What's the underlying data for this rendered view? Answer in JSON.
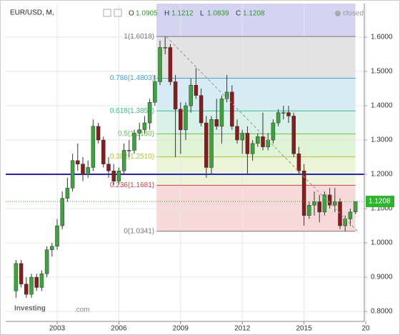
{
  "chart_data": {
    "type": "candlestick",
    "header": {
      "symbol": "EUR/USD, M,",
      "o_label": "O",
      "o": 1.0905,
      "h_label": "H",
      "h": 1.1212,
      "l_label": "L",
      "l": 1.0839,
      "c_label": "C",
      "c": 1.1208,
      "status": "closed"
    },
    "logo": {
      "brand": "Investing",
      "suffix": ".com"
    },
    "x": [
      2001.0,
      2001.25,
      2001.5,
      2001.75,
      2002.0,
      2002.25,
      2002.5,
      2002.75,
      2003.0,
      2003.25,
      2003.5,
      2003.75,
      2004.0,
      2004.25,
      2004.5,
      2004.75,
      2005.0,
      2005.25,
      2005.5,
      2005.75,
      2006.0,
      2006.25,
      2006.5,
      2006.75,
      2007.0,
      2007.25,
      2007.5,
      2007.75,
      2008.0,
      2008.25,
      2008.5,
      2008.75,
      2009.0,
      2009.25,
      2009.5,
      2009.75,
      2010.0,
      2010.25,
      2010.5,
      2010.75,
      2011.0,
      2011.25,
      2011.5,
      2011.75,
      2012.0,
      2012.25,
      2012.5,
      2012.75,
      2013.0,
      2013.25,
      2013.5,
      2013.75,
      2014.0,
      2014.25,
      2014.5,
      2014.75,
      2015.0,
      2015.25,
      2015.5,
      2015.75,
      2016.0,
      2016.25,
      2016.5,
      2016.75,
      2017.0,
      2017.25,
      2017.5
    ],
    "open": [
      0.86,
      0.94,
      0.88,
      0.85,
      0.9,
      0.87,
      0.91,
      0.98,
      0.99,
      1.05,
      1.13,
      1.16,
      1.24,
      1.23,
      1.2,
      1.22,
      1.34,
      1.3,
      1.23,
      1.21,
      1.18,
      1.21,
      1.27,
      1.27,
      1.32,
      1.33,
      1.35,
      1.41,
      1.47,
      1.57,
      1.57,
      1.47,
      1.39,
      1.33,
      1.4,
      1.46,
      1.43,
      1.35,
      1.22,
      1.36,
      1.34,
      1.42,
      1.44,
      1.34,
      1.3,
      1.32,
      1.26,
      1.29,
      1.31,
      1.28,
      1.3,
      1.35,
      1.38,
      1.38,
      1.37,
      1.26,
      1.21,
      1.08,
      1.11,
      1.12,
      1.09,
      1.14,
      1.11,
      1.12,
      1.05,
      1.07,
      1.0905
    ],
    "high": [
      0.95,
      0.95,
      0.9,
      0.91,
      0.91,
      0.92,
      0.99,
      1.0,
      1.07,
      1.15,
      1.19,
      1.26,
      1.29,
      1.25,
      1.24,
      1.36,
      1.35,
      1.31,
      1.25,
      1.23,
      1.22,
      1.29,
      1.3,
      1.33,
      1.35,
      1.37,
      1.42,
      1.49,
      1.59,
      1.6018,
      1.58,
      1.49,
      1.41,
      1.41,
      1.48,
      1.51,
      1.45,
      1.37,
      1.37,
      1.42,
      1.43,
      1.49,
      1.46,
      1.36,
      1.33,
      1.34,
      1.3,
      1.32,
      1.38,
      1.32,
      1.36,
      1.39,
      1.4,
      1.4,
      1.38,
      1.28,
      1.23,
      1.12,
      1.15,
      1.14,
      1.15,
      1.16,
      1.16,
      1.13,
      1.08,
      1.1,
      1.1212
    ],
    "low": [
      0.84,
      0.87,
      0.84,
      0.84,
      0.86,
      0.86,
      0.9,
      0.96,
      0.98,
      1.04,
      1.12,
      1.15,
      1.21,
      1.18,
      1.19,
      1.21,
      1.29,
      1.22,
      1.19,
      1.17,
      1.17,
      1.2,
      1.25,
      1.26,
      1.3,
      1.32,
      1.33,
      1.4,
      1.46,
      1.55,
      1.46,
      1.25,
      1.26,
      1.3,
      1.38,
      1.42,
      1.34,
      1.19,
      1.2,
      1.33,
      1.29,
      1.41,
      1.33,
      1.29,
      1.26,
      1.2,
      1.24,
      1.28,
      1.27,
      1.27,
      1.29,
      1.34,
      1.36,
      1.35,
      1.25,
      1.2,
      1.05,
      1.07,
      1.08,
      1.06,
      1.08,
      1.1,
      1.09,
      1.04,
      1.034,
      1.05,
      1.0839
    ],
    "close": [
      0.94,
      0.88,
      0.85,
      0.9,
      0.87,
      0.91,
      0.98,
      0.99,
      1.05,
      1.13,
      1.16,
      1.24,
      1.23,
      1.2,
      1.22,
      1.34,
      1.3,
      1.23,
      1.21,
      1.18,
      1.21,
      1.27,
      1.27,
      1.32,
      1.33,
      1.35,
      1.41,
      1.47,
      1.57,
      1.57,
      1.47,
      1.39,
      1.33,
      1.4,
      1.46,
      1.43,
      1.35,
      1.22,
      1.36,
      1.34,
      1.42,
      1.44,
      1.34,
      1.3,
      1.32,
      1.26,
      1.29,
      1.31,
      1.28,
      1.3,
      1.35,
      1.38,
      1.38,
      1.37,
      1.26,
      1.21,
      1.08,
      1.11,
      1.12,
      1.09,
      1.14,
      1.11,
      1.12,
      1.05,
      1.07,
      1.09,
      1.1208
    ],
    "up_color": "#3aa53a",
    "down_color": "#8b1a1a",
    "xlim": [
      2000.5,
      2017.93
    ],
    "ylim": [
      0.771,
      1.698
    ],
    "xticks": [
      2003,
      2006,
      2009,
      2012,
      2015,
      {
        "value": 2018,
        "label": "20"
      }
    ],
    "yticks": [
      {
        "value": 1.6,
        "label": "1.6000"
      },
      {
        "value": 1.5,
        "label": "1.5000"
      },
      {
        "value": 1.4,
        "label": "1.4000"
      },
      {
        "value": 1.3,
        "label": "1.3000"
      },
      {
        "value": 1.2,
        "label": "1.2000"
      },
      {
        "value": 1.1,
        "label": "1.1000"
      },
      {
        "value": 1.0,
        "label": "1.0000"
      },
      {
        "value": 0.9,
        "label": "0.9000"
      },
      {
        "value": 0.8,
        "label": "0.8000"
      }
    ],
    "fib_x": [
      2007.83,
      2017.5
    ],
    "fib_levels": [
      {
        "value": 1.6018,
        "label": "1(1.6018)",
        "color": "#777777",
        "fill": "#e3e3e3"
      },
      {
        "value": 1.4803,
        "label": "0.786(1.4803)",
        "color": "#4a9fd4",
        "fill": "#d6ecf5"
      },
      {
        "value": 1.385,
        "label": "0.618(1.3850)",
        "color": "#3dbb8a",
        "fill": "#d8f2ea"
      },
      {
        "value": 1.318,
        "label": "0.5(1.3180)",
        "color": "#66c04a",
        "fill": "#dff3d6"
      },
      {
        "value": 1.251,
        "label": "0.382(1.2510)",
        "color": "#a8c83a",
        "fill": "#edf5d8"
      },
      {
        "value": 1.1681,
        "label": "0.236(1.1681)",
        "color": "#d44040",
        "fill": "#f7d9d9"
      },
      {
        "value": 1.0341,
        "label": "0(1.0341)",
        "color": "#777777",
        "fill": "#f7d9d9"
      }
    ],
    "top_fill": "#d4d4f2",
    "hline": {
      "value": 1.2,
      "color": "#2222dd"
    },
    "last_price": {
      "value": 1.1208,
      "color": "#2bb52b"
    },
    "trendline": {
      "x": [
        2008.3,
        2017.6
      ],
      "y": [
        1.6018,
        1.0341
      ]
    }
  }
}
